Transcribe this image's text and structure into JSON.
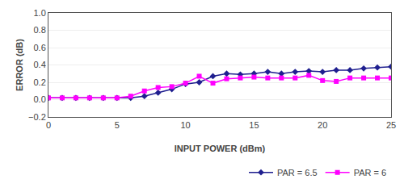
{
  "chart_data": {
    "type": "line",
    "xlabel": "INPUT POWER (dBm)",
    "ylabel": "ERROR (dB)",
    "x": [
      0,
      1,
      2,
      3,
      4,
      5,
      6,
      7,
      8,
      9,
      10,
      11,
      12,
      13,
      14,
      15,
      16,
      17,
      18,
      19,
      20,
      21,
      22,
      23,
      24,
      25
    ],
    "series": [
      {
        "name": "PAR = 6.5",
        "color": "#1f1f8f",
        "marker": "diamond",
        "line_style": "solid",
        "values": [
          0.02,
          0.02,
          0.02,
          0.02,
          0.02,
          0.02,
          0.02,
          0.04,
          0.08,
          0.12,
          0.18,
          0.2,
          0.27,
          0.3,
          0.29,
          0.3,
          0.32,
          0.3,
          0.32,
          0.33,
          0.32,
          0.34,
          0.34,
          0.36,
          0.37,
          0.38
        ]
      },
      {
        "name": "PAR = 6",
        "color": "#ff00ff",
        "marker": "square",
        "line_style": "solid",
        "values": [
          0.02,
          0.02,
          0.02,
          0.02,
          0.02,
          0.02,
          0.04,
          0.1,
          0.14,
          0.15,
          0.19,
          0.27,
          0.19,
          0.24,
          0.25,
          0.26,
          0.25,
          0.25,
          0.25,
          0.28,
          0.22,
          0.21,
          0.25,
          0.25,
          0.25,
          0.25
        ]
      }
    ],
    "xlim": [
      0,
      25
    ],
    "xticks": [
      0,
      5,
      10,
      15,
      20,
      25
    ],
    "ylim": [
      -0.2,
      1.0
    ],
    "yticks": [
      {
        "value": -0.2,
        "label": "−0.2"
      },
      {
        "value": 0.0,
        "label": "0.0"
      },
      0.2,
      0.4,
      0.6,
      0.8,
      {
        "value": 1.0,
        "label": "1.0"
      }
    ],
    "grid": "y",
    "legend": "bottom"
  }
}
